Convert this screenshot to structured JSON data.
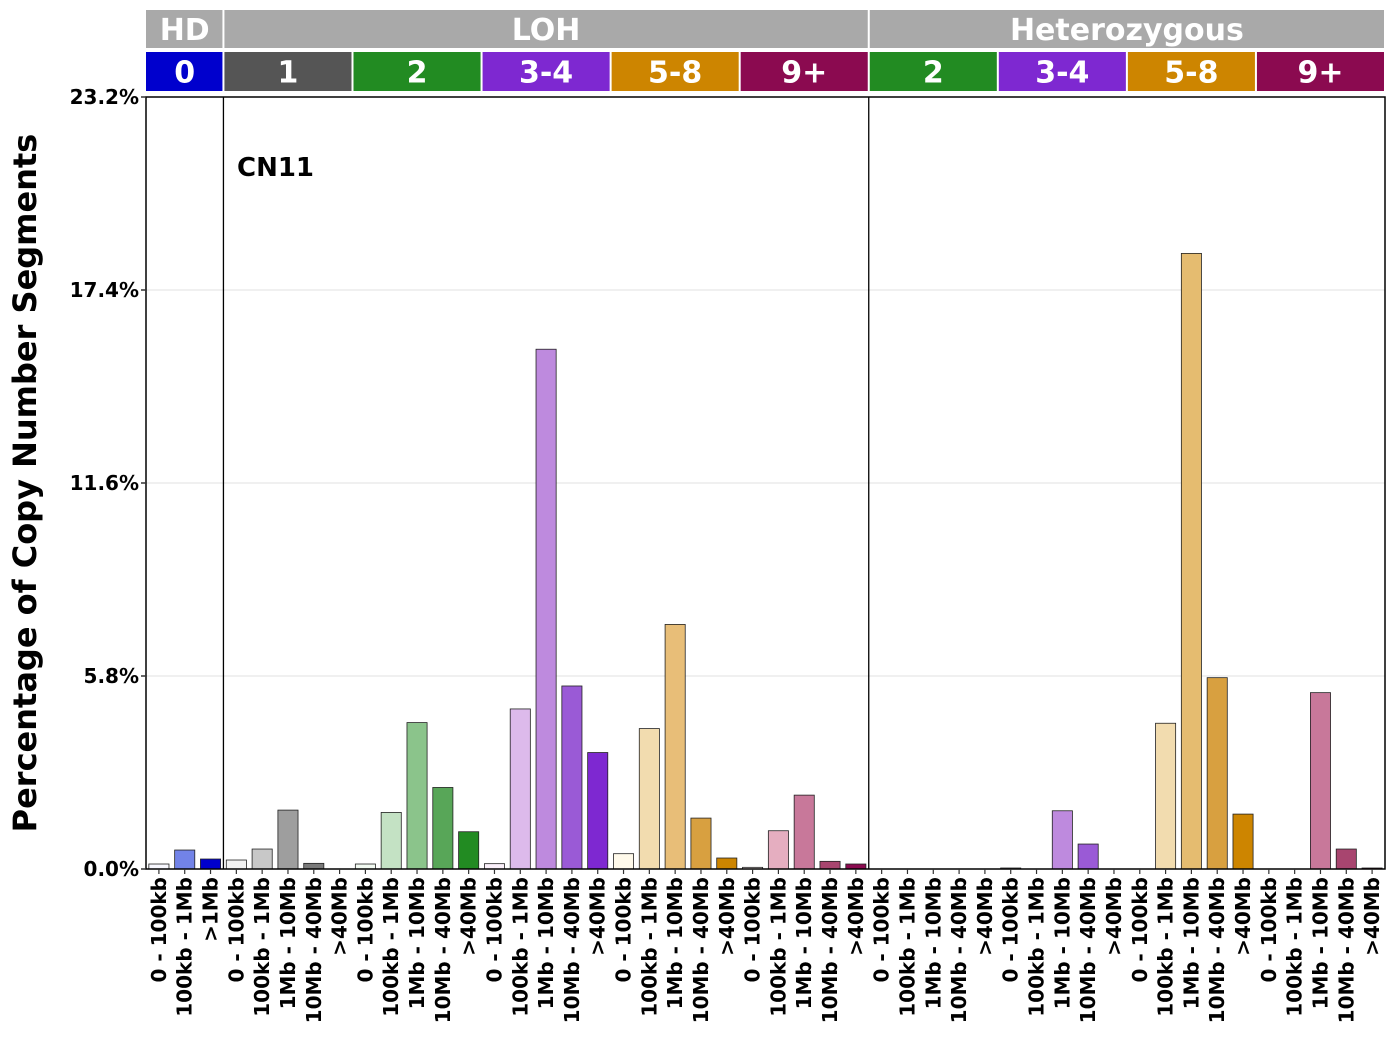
{
  "chart_data": {
    "type": "bar",
    "title": "",
    "signature_label": "CN11",
    "ylabel": "Percentage of Copy Number Segments",
    "xlabel": "",
    "ylim": [
      0,
      23.2
    ],
    "yticks": [
      "0.0%",
      "5.8%",
      "11.6%",
      "17.4%",
      "23.2%"
    ],
    "ytick_values": [
      0,
      5.8,
      11.6,
      17.4,
      23.2
    ],
    "grid": "horizontal",
    "top_groups": [
      {
        "label": "HD",
        "span": 3
      },
      {
        "label": "LOH",
        "span": 25
      },
      {
        "label": "Heterozygous",
        "span": 20
      }
    ],
    "cn_groups": [
      {
        "label": "0",
        "span": 3,
        "color": "#0000CD"
      },
      {
        "label": "1",
        "span": 5,
        "color": "#555555"
      },
      {
        "label": "2",
        "span": 5,
        "color": "#228B22"
      },
      {
        "label": "3-4",
        "span": 5,
        "color": "#7E28D1"
      },
      {
        "label": "5-8",
        "span": 5,
        "color": "#CD8500"
      },
      {
        "label": "9+",
        "span": 5,
        "color": "#8B0A50"
      },
      {
        "label": "2",
        "span": 5,
        "color": "#228B22"
      },
      {
        "label": "3-4",
        "span": 5,
        "color": "#7E28D1"
      },
      {
        "label": "5-8",
        "span": 5,
        "color": "#CD8500"
      },
      {
        "label": "9+",
        "span": 5,
        "color": "#8B0A50"
      }
    ],
    "categories": [
      "0 - 100kb",
      "100kb - 1Mb",
      ">1Mb",
      "0 - 100kb",
      "100kb - 1Mb",
      "1Mb - 10Mb",
      "10Mb - 40Mb",
      ">40Mb",
      "0 - 100kb",
      "100kb - 1Mb",
      "1Mb - 10Mb",
      "10Mb - 40Mb",
      ">40Mb",
      "0 - 100kb",
      "100kb - 1Mb",
      "1Mb - 10Mb",
      "10Mb - 40Mb",
      ">40Mb",
      "0 - 100kb",
      "100kb - 1Mb",
      "1Mb - 10Mb",
      "10Mb - 40Mb",
      ">40Mb",
      "0 - 100kb",
      "100kb - 1Mb",
      "1Mb - 10Mb",
      "10Mb - 40Mb",
      ">40Mb",
      "0 - 100kb",
      "100kb - 1Mb",
      "1Mb - 10Mb",
      "10Mb - 40Mb",
      ">40Mb",
      "0 - 100kb",
      "100kb - 1Mb",
      "1Mb - 10Mb",
      "10Mb - 40Mb",
      ">40Mb",
      "0 - 100kb",
      "100kb - 1Mb",
      "1Mb - 10Mb",
      "10Mb - 40Mb",
      ">40Mb",
      "0 - 100kb",
      "100kb - 1Mb",
      "1Mb - 10Mb",
      "10Mb - 40Mb",
      ">40Mb"
    ],
    "values": [
      0.15,
      0.57,
      0.3,
      0.27,
      0.6,
      1.77,
      0.17,
      0.0,
      0.15,
      1.7,
      4.4,
      2.45,
      1.12,
      0.16,
      4.81,
      15.62,
      5.5,
      3.5,
      0.46,
      4.22,
      7.35,
      1.53,
      0.33,
      0.05,
      1.15,
      2.22,
      0.23,
      0.15,
      0.0,
      0.0,
      0.0,
      0.0,
      0.0,
      0.03,
      0.0,
      1.75,
      0.75,
      0.0,
      0.0,
      4.38,
      18.5,
      5.75,
      1.65,
      0.0,
      0.0,
      5.3,
      0.6,
      0.03
    ],
    "bar_colors": [
      "#F8F8FF",
      "#7283E8",
      "#0000CD",
      "#F2F2F2",
      "#C8C8C8",
      "#9E9E9E",
      "#7A7A7A",
      "#555555",
      "#F2FAF2",
      "#C4E2C4",
      "#8BC48B",
      "#58A658",
      "#228B22",
      "#FAF0FA",
      "#DDBAEB",
      "#BE8ADE",
      "#9A5AD6",
      "#7E28D1",
      "#FFFAEB",
      "#F2DCAF",
      "#E8BE78",
      "#D8A040",
      "#CD8500",
      "#F8ECF0",
      "#E5AEC0",
      "#C8789A",
      "#A8456F",
      "#8B0A50",
      "#F2FAF2",
      "#C4E2C4",
      "#8BC48B",
      "#58A658",
      "#228B22",
      "#FAF0FA",
      "#DDBAEB",
      "#BE8ADE",
      "#9A5AD6",
      "#7E28D1",
      "#FFFAEB",
      "#F2DCAF",
      "#E5BC70",
      "#D8A040",
      "#CD8500",
      "#F8ECF0",
      "#E5AEC0",
      "#C8789A",
      "#A8456F",
      "#8B0A50"
    ]
  }
}
